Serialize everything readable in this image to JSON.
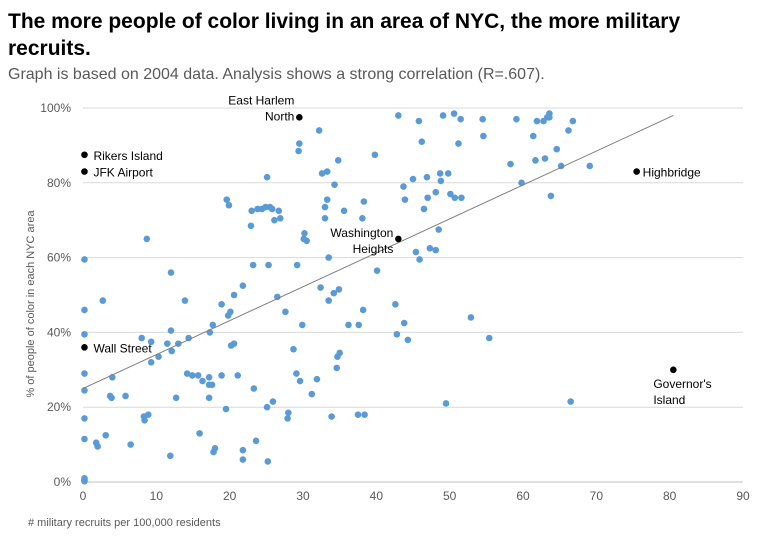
{
  "chart_data": {
    "type": "scatter",
    "title": "The more people of color living in an area of NYC, the more military recruits.",
    "subtitle": "Graph is based on 2004 data. Analysis shows a strong correlation (R=.607).",
    "xlabel": "# military recruits per 100,000 residents",
    "ylabel": "% of people of color in each NYC area",
    "xlim": [
      0,
      90
    ],
    "ylim": [
      0,
      100
    ],
    "x_ticks": [
      "0",
      "10",
      "20",
      "30",
      "40",
      "50",
      "60",
      "70",
      "80",
      "90"
    ],
    "y_ticks": [
      "0%",
      "20%",
      "40%",
      "60%",
      "80%",
      "100%"
    ],
    "grid": "horizontal",
    "colors": {
      "points": "#5b9bd5",
      "highlight": "#000000",
      "trendline": "#808080",
      "grid": "#d9d9d9"
    },
    "trendline": {
      "x": [
        0,
        80.5
      ],
      "y": [
        25,
        98
      ]
    },
    "highlighted_points": [
      {
        "label": "East Harlem North",
        "x": 29.5,
        "y": 97.5
      },
      {
        "label": "Rikers Island",
        "x": 0.2,
        "y": 87.5
      },
      {
        "label": "JFK Airport",
        "x": 0.2,
        "y": 83
      },
      {
        "label": "Highbridge",
        "x": 75.5,
        "y": 83
      },
      {
        "label": "Washington Heights",
        "x": 43,
        "y": 65
      },
      {
        "label": "Wall Street",
        "x": 0.2,
        "y": 36
      },
      {
        "label": "Governor's Island",
        "x": 80.5,
        "y": 30
      }
    ],
    "points": [
      [
        0.2,
        59.5
      ],
      [
        0.2,
        46
      ],
      [
        0.2,
        39.5
      ],
      [
        0.2,
        29
      ],
      [
        0.2,
        24.5
      ],
      [
        0.2,
        17
      ],
      [
        0.2,
        11.5
      ],
      [
        0.2,
        1
      ],
      [
        0.2,
        0.5
      ],
      [
        0.2,
        0.2
      ],
      [
        1.8,
        10.5
      ],
      [
        2,
        9.5
      ],
      [
        2.7,
        48.5
      ],
      [
        3.1,
        12.5
      ],
      [
        3.7,
        23
      ],
      [
        3.9,
        22.5
      ],
      [
        4,
        28
      ],
      [
        5.8,
        23
      ],
      [
        6.5,
        10
      ],
      [
        8,
        38.5
      ],
      [
        8.3,
        17.5
      ],
      [
        8.4,
        16.5
      ],
      [
        8.7,
        65
      ],
      [
        8.9,
        18
      ],
      [
        9.3,
        37.5
      ],
      [
        9.3,
        32
      ],
      [
        10.3,
        33.5
      ],
      [
        11.5,
        37
      ],
      [
        11.9,
        7
      ],
      [
        12,
        40.5
      ],
      [
        12,
        56
      ],
      [
        12.1,
        35
      ],
      [
        12.7,
        22.5
      ],
      [
        13,
        37
      ],
      [
        13.9,
        48.5
      ],
      [
        14.2,
        29
      ],
      [
        14.4,
        38.5
      ],
      [
        14.9,
        28.5
      ],
      [
        15.7,
        28.5
      ],
      [
        15.9,
        13
      ],
      [
        16.3,
        27
      ],
      [
        17.2,
        22.5
      ],
      [
        17.2,
        28
      ],
      [
        17.2,
        26
      ],
      [
        17.3,
        40
      ],
      [
        17.6,
        26
      ],
      [
        17.7,
        42
      ],
      [
        17.8,
        8
      ],
      [
        18,
        9
      ],
      [
        18.9,
        28.5
      ],
      [
        18.9,
        47.5
      ],
      [
        19.5,
        19.5
      ],
      [
        19.8,
        44.5
      ],
      [
        19.6,
        75.5
      ],
      [
        19.9,
        74
      ],
      [
        20.1,
        45.5
      ],
      [
        20.2,
        36.5
      ],
      [
        20.6,
        37
      ],
      [
        20.6,
        50
      ],
      [
        21.1,
        28.5
      ],
      [
        21.8,
        8.5
      ],
      [
        21.8,
        6
      ],
      [
        21.8,
        52.5
      ],
      [
        22.9,
        68.5
      ],
      [
        23,
        72.5
      ],
      [
        23.2,
        58
      ],
      [
        23.3,
        25
      ],
      [
        23.6,
        11
      ],
      [
        23.8,
        73
      ],
      [
        24.4,
        73
      ],
      [
        24.9,
        73.5
      ],
      [
        25.1,
        81.5
      ],
      [
        25.1,
        20
      ],
      [
        25.2,
        5.5
      ],
      [
        25.3,
        58
      ],
      [
        25.5,
        73.5
      ],
      [
        25.8,
        73
      ],
      [
        25.9,
        21.5
      ],
      [
        26.1,
        70
      ],
      [
        26.7,
        72.5
      ],
      [
        26.5,
        49.5
      ],
      [
        26.9,
        70.5
      ],
      [
        27.6,
        45.5
      ],
      [
        27.9,
        17
      ],
      [
        28,
        18.5
      ],
      [
        28.7,
        35.5
      ],
      [
        29.1,
        29
      ],
      [
        29.2,
        58
      ],
      [
        29.4,
        88.5
      ],
      [
        29.5,
        90.5
      ],
      [
        29.6,
        27
      ],
      [
        29.9,
        42
      ],
      [
        30.1,
        65
      ],
      [
        30.2,
        66.5
      ],
      [
        30.5,
        64.5
      ],
      [
        31.2,
        23.5
      ],
      [
        31.9,
        27.5
      ],
      [
        32.2,
        94
      ],
      [
        32.4,
        52
      ],
      [
        32.6,
        82.5
      ],
      [
        33,
        70.5
      ],
      [
        33,
        73.5
      ],
      [
        33.3,
        75.5
      ],
      [
        33.3,
        83
      ],
      [
        33.5,
        60
      ],
      [
        33.5,
        48.5
      ],
      [
        33.9,
        17.5
      ],
      [
        34.2,
        50.5
      ],
      [
        34.3,
        79.5
      ],
      [
        34.6,
        30.5
      ],
      [
        34.7,
        33.5
      ],
      [
        34.9,
        51.5
      ],
      [
        34.8,
        86
      ],
      [
        35,
        34.5
      ],
      [
        35.6,
        72.5
      ],
      [
        36.2,
        42
      ],
      [
        37.5,
        18
      ],
      [
        37.6,
        42
      ],
      [
        38.1,
        70.5
      ],
      [
        38.2,
        46
      ],
      [
        38.3,
        75
      ],
      [
        38.4,
        18
      ],
      [
        39.8,
        87.5
      ],
      [
        40.1,
        56.5
      ],
      [
        43,
        98
      ],
      [
        42.6,
        47.5
      ],
      [
        42.8,
        39.5
      ],
      [
        43.7,
        79
      ],
      [
        43.9,
        75.5
      ],
      [
        43.8,
        42.5
      ],
      [
        44.3,
        38
      ],
      [
        45,
        81
      ],
      [
        45.4,
        61.5
      ],
      [
        45.8,
        96.5
      ],
      [
        45.9,
        59.5
      ],
      [
        46.2,
        91
      ],
      [
        46.5,
        73
      ],
      [
        46.9,
        81.5
      ],
      [
        47,
        76
      ],
      [
        47.3,
        62.5
      ],
      [
        48.1,
        77.5
      ],
      [
        48.1,
        62
      ],
      [
        48.5,
        67.5
      ],
      [
        48.7,
        82.5
      ],
      [
        48.8,
        80.5
      ],
      [
        49.1,
        98
      ],
      [
        49.5,
        21
      ],
      [
        49.8,
        82.5
      ],
      [
        50.1,
        77
      ],
      [
        50.6,
        98.5
      ],
      [
        50.7,
        76
      ],
      [
        51.2,
        90.5
      ],
      [
        51.5,
        97
      ],
      [
        51.6,
        76
      ],
      [
        52.9,
        44
      ],
      [
        54.5,
        97
      ],
      [
        54.6,
        92.5
      ],
      [
        55.4,
        38.5
      ],
      [
        58.3,
        85
      ],
      [
        59.1,
        97
      ],
      [
        59.8,
        80
      ],
      [
        61.4,
        92.5
      ],
      [
        61.7,
        86
      ],
      [
        61.9,
        96.5
      ],
      [
        62.8,
        96.5
      ],
      [
        63,
        86.5
      ],
      [
        63.3,
        97.5
      ],
      [
        63.6,
        97.5
      ],
      [
        63.6,
        98.5
      ],
      [
        63.8,
        76.5
      ],
      [
        64.6,
        89
      ],
      [
        65.2,
        84.5
      ],
      [
        66.2,
        94
      ],
      [
        66.5,
        21.5
      ],
      [
        66.8,
        96.5
      ],
      [
        69.1,
        84.5
      ]
    ]
  }
}
